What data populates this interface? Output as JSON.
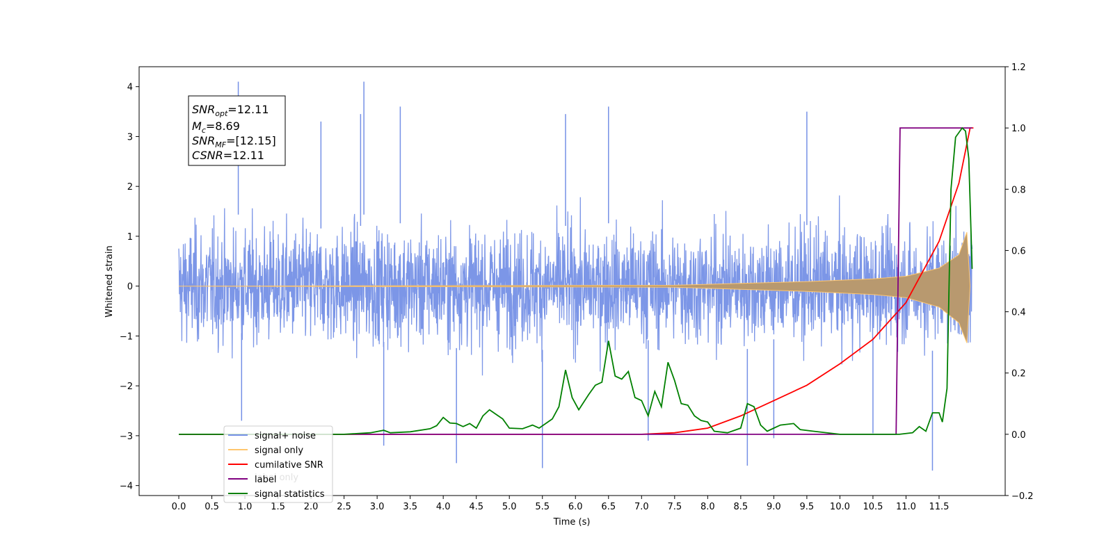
{
  "chart_data": {
    "type": "line",
    "xlabel": "Time (s)",
    "ylabel": "Whitened strain",
    "xlim": [
      -0.6,
      12.5
    ],
    "ylim": [
      -4.2,
      4.4
    ],
    "y2lim": [
      -0.2,
      1.2
    ],
    "x_ticks": [
      "0.0",
      "0.5",
      "1.0",
      "1.5",
      "2.0",
      "2.5",
      "3.0",
      "3.5",
      "4.0",
      "4.5",
      "5.0",
      "5.5",
      "6.0",
      "6.5",
      "7.0",
      "7.5",
      "8.0",
      "8.5",
      "9.0",
      "9.5",
      "10.0",
      "10.5",
      "11.0",
      "11.5"
    ],
    "y_ticks": [
      "−4",
      "−3",
      "−2",
      "−1",
      "0",
      "1",
      "2",
      "3",
      "4"
    ],
    "y2_ticks": [
      "−0.2",
      "0.0",
      "0.2",
      "0.4",
      "0.6",
      "0.8",
      "1.0",
      "1.2"
    ],
    "annotation": {
      "lines": [
        {
          "name": "SNR",
          "sub": "opt",
          "value": "=12.11"
        },
        {
          "name": "M",
          "sub": "c",
          "value": "=8.69"
        },
        {
          "name": "SNR",
          "sub": "MF",
          "value": "=[12.15]"
        },
        {
          "name": "CSNR",
          "sub": "",
          "value": "=12.11"
        }
      ]
    },
    "legend": {
      "position": "lower-left",
      "entries": [
        {
          "label": "signal+ noise",
          "color": "#7590e6"
        },
        {
          "label": "signal only",
          "color": "#ffc66d"
        },
        {
          "label": "cumilative SNR",
          "color": "#ff0000"
        },
        {
          "label": "label",
          "color": "#800080"
        },
        {
          "label": "signal statistics",
          "color": "#008000"
        }
      ],
      "occluded_text": "label only"
    },
    "series": [
      {
        "name": "signal+ noise",
        "axis": "left",
        "color": "#7590e6",
        "x_range": [
          0.0,
          12.0
        ],
        "envelope_typical": [
          -1.9,
          2.1
        ],
        "spikes": [
          {
            "x": 0.9,
            "y": 4.1
          },
          {
            "x": 2.8,
            "y": 4.1
          },
          {
            "x": 2.75,
            "y": 3.45
          },
          {
            "x": 3.35,
            "y": 3.6
          },
          {
            "x": 6.5,
            "y": 3.6
          },
          {
            "x": 5.85,
            "y": 3.45
          },
          {
            "x": 9.5,
            "y": 3.5
          },
          {
            "x": 2.15,
            "y": 3.3
          },
          {
            "x": 4.2,
            "y": -3.55
          },
          {
            "x": 5.5,
            "y": -3.65
          },
          {
            "x": 8.6,
            "y": -3.6
          },
          {
            "x": 11.4,
            "y": -3.7
          },
          {
            "x": 3.1,
            "y": -3.2
          },
          {
            "x": 7.1,
            "y": -3.1
          },
          {
            "x": 9.0,
            "y": -3.05
          },
          {
            "x": 0.95,
            "y": -2.7
          },
          {
            "x": 10.5,
            "y": -2.95
          }
        ]
      },
      {
        "name": "signal only",
        "axis": "left",
        "color": "#ffc66d",
        "amplitude_envelope": [
          {
            "x": 0.0,
            "y": 0.0
          },
          {
            "x": 7.5,
            "y": 0.02
          },
          {
            "x": 8.5,
            "y": 0.06
          },
          {
            "x": 9.5,
            "y": 0.1
          },
          {
            "x": 10.5,
            "y": 0.16
          },
          {
            "x": 11.0,
            "y": 0.22
          },
          {
            "x": 11.5,
            "y": 0.4
          },
          {
            "x": 11.8,
            "y": 0.7
          },
          {
            "x": 11.92,
            "y": 1.2
          },
          {
            "x": 11.97,
            "y": 0.0
          }
        ]
      },
      {
        "name": "cumilative SNR",
        "axis": "right",
        "color": "#ff0000",
        "points": [
          {
            "x": 0.0,
            "y": 0.0
          },
          {
            "x": 7.0,
            "y": 0.0
          },
          {
            "x": 7.5,
            "y": 0.005
          },
          {
            "x": 8.0,
            "y": 0.02
          },
          {
            "x": 8.5,
            "y": 0.06
          },
          {
            "x": 9.0,
            "y": 0.11
          },
          {
            "x": 9.5,
            "y": 0.16
          },
          {
            "x": 10.0,
            "y": 0.23
          },
          {
            "x": 10.5,
            "y": 0.31
          },
          {
            "x": 11.0,
            "y": 0.43
          },
          {
            "x": 11.5,
            "y": 0.63
          },
          {
            "x": 11.8,
            "y": 0.82
          },
          {
            "x": 11.97,
            "y": 1.0
          },
          {
            "x": 12.02,
            "y": 1.0
          }
        ]
      },
      {
        "name": "label",
        "axis": "right",
        "color": "#800080",
        "points": [
          {
            "x": 0.0,
            "y": 0.0
          },
          {
            "x": 10.85,
            "y": 0.0
          },
          {
            "x": 10.91,
            "y": 1.0
          },
          {
            "x": 12.0,
            "y": 1.0
          }
        ]
      },
      {
        "name": "signal statistics",
        "axis": "right",
        "color": "#008000",
        "points": [
          {
            "x": 0.0,
            "y": 0.0
          },
          {
            "x": 2.5,
            "y": 0.0
          },
          {
            "x": 2.9,
            "y": 0.005
          },
          {
            "x": 3.1,
            "y": 0.013
          },
          {
            "x": 3.2,
            "y": 0.005
          },
          {
            "x": 3.5,
            "y": 0.008
          },
          {
            "x": 3.8,
            "y": 0.018
          },
          {
            "x": 3.9,
            "y": 0.028
          },
          {
            "x": 4.0,
            "y": 0.055
          },
          {
            "x": 4.1,
            "y": 0.037
          },
          {
            "x": 4.2,
            "y": 0.035
          },
          {
            "x": 4.3,
            "y": 0.025
          },
          {
            "x": 4.4,
            "y": 0.035
          },
          {
            "x": 4.5,
            "y": 0.02
          },
          {
            "x": 4.6,
            "y": 0.06
          },
          {
            "x": 4.7,
            "y": 0.08
          },
          {
            "x": 4.8,
            "y": 0.065
          },
          {
            "x": 4.9,
            "y": 0.05
          },
          {
            "x": 5.0,
            "y": 0.02
          },
          {
            "x": 5.2,
            "y": 0.018
          },
          {
            "x": 5.35,
            "y": 0.03
          },
          {
            "x": 5.45,
            "y": 0.02
          },
          {
            "x": 5.55,
            "y": 0.035
          },
          {
            "x": 5.65,
            "y": 0.05
          },
          {
            "x": 5.75,
            "y": 0.09
          },
          {
            "x": 5.85,
            "y": 0.21
          },
          {
            "x": 5.95,
            "y": 0.12
          },
          {
            "x": 6.05,
            "y": 0.08
          },
          {
            "x": 6.2,
            "y": 0.13
          },
          {
            "x": 6.3,
            "y": 0.16
          },
          {
            "x": 6.4,
            "y": 0.17
          },
          {
            "x": 6.5,
            "y": 0.305
          },
          {
            "x": 6.6,
            "y": 0.19
          },
          {
            "x": 6.7,
            "y": 0.18
          },
          {
            "x": 6.8,
            "y": 0.205
          },
          {
            "x": 6.9,
            "y": 0.12
          },
          {
            "x": 7.0,
            "y": 0.11
          },
          {
            "x": 7.1,
            "y": 0.06
          },
          {
            "x": 7.2,
            "y": 0.14
          },
          {
            "x": 7.3,
            "y": 0.09
          },
          {
            "x": 7.4,
            "y": 0.235
          },
          {
            "x": 7.5,
            "y": 0.175
          },
          {
            "x": 7.6,
            "y": 0.1
          },
          {
            "x": 7.7,
            "y": 0.095
          },
          {
            "x": 7.8,
            "y": 0.06
          },
          {
            "x": 7.9,
            "y": 0.045
          },
          {
            "x": 8.0,
            "y": 0.04
          },
          {
            "x": 8.1,
            "y": 0.01
          },
          {
            "x": 8.3,
            "y": 0.005
          },
          {
            "x": 8.5,
            "y": 0.02
          },
          {
            "x": 8.6,
            "y": 0.1
          },
          {
            "x": 8.7,
            "y": 0.09
          },
          {
            "x": 8.8,
            "y": 0.03
          },
          {
            "x": 8.9,
            "y": 0.01
          },
          {
            "x": 9.0,
            "y": 0.02
          },
          {
            "x": 9.1,
            "y": 0.03
          },
          {
            "x": 9.3,
            "y": 0.035
          },
          {
            "x": 9.4,
            "y": 0.015
          },
          {
            "x": 9.6,
            "y": 0.01
          },
          {
            "x": 10.0,
            "y": 0.0
          },
          {
            "x": 10.9,
            "y": 0.0
          },
          {
            "x": 11.1,
            "y": 0.005
          },
          {
            "x": 11.2,
            "y": 0.025
          },
          {
            "x": 11.3,
            "y": 0.01
          },
          {
            "x": 11.4,
            "y": 0.07
          },
          {
            "x": 11.5,
            "y": 0.07
          },
          {
            "x": 11.55,
            "y": 0.04
          },
          {
            "x": 11.62,
            "y": 0.15
          },
          {
            "x": 11.68,
            "y": 0.8
          },
          {
            "x": 11.75,
            "y": 0.97
          },
          {
            "x": 11.85,
            "y": 1.0
          },
          {
            "x": 11.9,
            "y": 0.99
          },
          {
            "x": 11.95,
            "y": 0.9
          },
          {
            "x": 12.0,
            "y": 0.54
          }
        ]
      }
    ]
  }
}
